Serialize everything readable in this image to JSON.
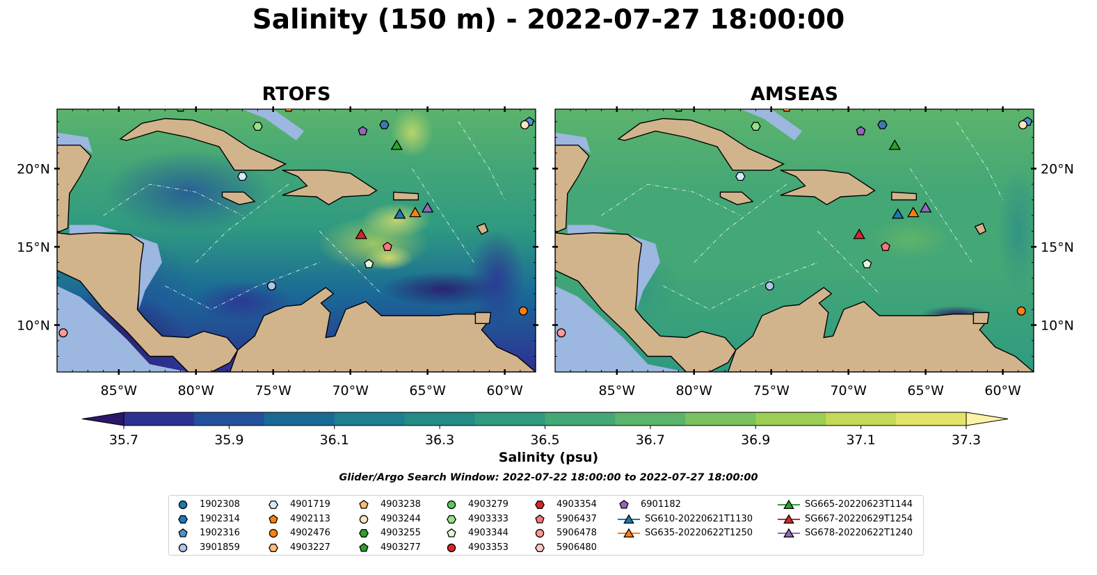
{
  "title": "Salinity (150 m) - 2022-07-27 18:00:00",
  "panels": [
    {
      "id": "rtofs",
      "title": "RTOFS"
    },
    {
      "id": "amseas",
      "title": "AMSEAS"
    }
  ],
  "colors": {
    "land": "#d2b48c",
    "shallow_water": "#9cb7e0",
    "coast": "#000000",
    "eez_lines": "#ffffff"
  },
  "chart_data": {
    "type": "heatmap",
    "variable": "Salinity (150 m)",
    "colorbar": {
      "label": "Salinity (psu)",
      "range": [
        35.7,
        37.3
      ],
      "extend": "both",
      "ticks": [
        "35.7",
        "35.9",
        "36.1",
        "36.3",
        "36.5",
        "36.7",
        "36.9",
        "37.1",
        "37.3"
      ],
      "colors": [
        "#2b1769",
        "#2e2f93",
        "#23509b",
        "#1a6a96",
        "#1d7f8f",
        "#248b87",
        "#2f9a80",
        "#44a776",
        "#5cb46c",
        "#7ac15f",
        "#9ccd55",
        "#c3d957",
        "#e2e36b",
        "#fbf3a5"
      ]
    },
    "x_axis": {
      "ticks": [
        "85°W",
        "80°W",
        "75°W",
        "70°W",
        "65°W",
        "60°W"
      ],
      "tick_values": [
        -85,
        -80,
        -75,
        -70,
        -65,
        -60
      ],
      "range": [
        -89,
        -58
      ]
    },
    "y_axis": {
      "ticks": [
        "10°N",
        "15°N",
        "20°N"
      ],
      "tick_values": [
        10,
        15,
        20
      ],
      "range": [
        7,
        23.8
      ]
    },
    "search_window": "Glider/Argo Search Window: 2022-07-22 18:00:00 to 2022-07-27 18:00:00",
    "platforms": [
      {
        "id": "1902308",
        "marker": "circle",
        "color": "#1f77b4",
        "lon": null,
        "lat": null
      },
      {
        "id": "1902314",
        "marker": "hexagon",
        "color": "#1f77b4",
        "lon": null,
        "lat": null
      },
      {
        "id": "1902316",
        "marker": "pentagon",
        "color": "#4c94cc",
        "lon": -58.4,
        "lat": 23.0
      },
      {
        "id": "3901859",
        "marker": "circle",
        "color": "#aec7e8",
        "lon": -75.1,
        "lat": 12.5
      },
      {
        "id": "4901719",
        "marker": "hexagon",
        "color": "#d6e9ff",
        "lon": -77.0,
        "lat": 19.5
      },
      {
        "id": "4902113",
        "marker": "pentagon",
        "color": "#ff7f0e",
        "lon": -74.0,
        "lat": 23.9
      },
      {
        "id": "4902476",
        "marker": "circle",
        "color": "#ff7f0e",
        "lon": -58.8,
        "lat": 10.9
      },
      {
        "id": "4903227",
        "marker": "hexagon",
        "color": "#ffbb78",
        "lon": null,
        "lat": null
      },
      {
        "id": "4903238",
        "marker": "pentagon",
        "color": "#ffbb78",
        "lon": null,
        "lat": null
      },
      {
        "id": "4903244",
        "marker": "circle",
        "color": "#ffe4c4",
        "lon": -58.7,
        "lat": 22.8
      },
      {
        "id": "4903255",
        "marker": "hexagon",
        "color": "#2ca02c",
        "lon": null,
        "lat": null
      },
      {
        "id": "4903277",
        "marker": "pentagon",
        "color": "#2ca02c",
        "lon": -81.0,
        "lat": 23.9
      },
      {
        "id": "4903279",
        "marker": "circle",
        "color": "#5cc85c",
        "lon": null,
        "lat": null
      },
      {
        "id": "4903333",
        "marker": "hexagon",
        "color": "#98df8a",
        "lon": -76.0,
        "lat": 22.7
      },
      {
        "id": "4903344",
        "marker": "pentagon",
        "color": "#e3f7d8",
        "lon": -68.8,
        "lat": 13.9
      },
      {
        "id": "4903353",
        "marker": "circle",
        "color": "#d62728",
        "lon": null,
        "lat": null
      },
      {
        "id": "4903354",
        "marker": "hexagon",
        "color": "#d62728",
        "lon": null,
        "lat": null
      },
      {
        "id": "5906437",
        "marker": "pentagon",
        "color": "#f7777a",
        "lon": -67.6,
        "lat": 15.0
      },
      {
        "id": "5906478",
        "marker": "circle",
        "color": "#ff9896",
        "lon": -88.6,
        "lat": 9.5
      },
      {
        "id": "5906480",
        "marker": "hexagon",
        "color": "#ffc7c6",
        "lon": null,
        "lat": null
      },
      {
        "id": "6901182",
        "marker": "pentagon",
        "color": "#9467bd",
        "lon": -69.2,
        "lat": 22.4
      },
      {
        "id": "1902314",
        "marker": "hexagon",
        "color": "#3f78b0",
        "lon": -67.8,
        "lat": 22.8,
        "legend": false
      }
    ],
    "gliders": [
      {
        "id": "SG610-20220621T1130",
        "marker": "triangle",
        "color": "#1f77b4",
        "lon": -66.8,
        "lat": 17.1
      },
      {
        "id": "SG635-20220622T1250",
        "marker": "triangle",
        "color": "#ff7f0e",
        "lon": -65.8,
        "lat": 17.2
      },
      {
        "id": "SG665-20220623T1144",
        "marker": "triangle",
        "color": "#2ca02c",
        "lon": -67.0,
        "lat": 21.5
      },
      {
        "id": "SG667-20220629T1254",
        "marker": "triangle",
        "color": "#d62728",
        "lon": -69.3,
        "lat": 15.8
      },
      {
        "id": "SG678-20220622T1240",
        "marker": "triangle",
        "color": "#9467bd",
        "lon": -65.0,
        "lat": 17.5
      }
    ]
  },
  "legend_columns": [
    [
      "1902308",
      "1902314",
      "1902316",
      "3901859"
    ],
    [
      "4901719",
      "4902113",
      "4902476",
      "4903227"
    ],
    [
      "4903238",
      "4903244",
      "4903255",
      "4903277"
    ],
    [
      "4903279",
      "4903333",
      "4903344",
      "4903353"
    ],
    [
      "4903354",
      "5906437",
      "5906478",
      "5906480"
    ],
    [
      "6901182",
      "SG610-20220621T1130",
      "SG635-20220622T1250"
    ],
    [
      "SG665-20220623T1144",
      "SG667-20220629T1254",
      "SG678-20220622T1240"
    ]
  ]
}
